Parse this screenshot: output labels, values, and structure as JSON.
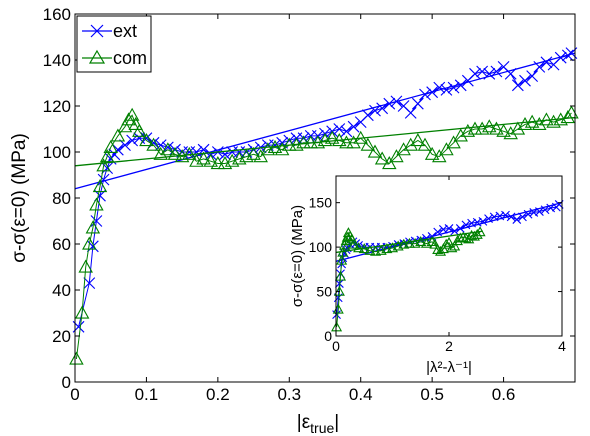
{
  "chart_data": [
    {
      "type": "scatter",
      "xlabel": "|ε",
      "xlabel_sub": "true",
      "xlabel_end": "|",
      "ylabel": "σ-σ(ε=0) (MPa)",
      "xlim": [
        0,
        0.7
      ],
      "ylim": [
        0,
        160
      ],
      "xticks": [
        0,
        0.1,
        0.2,
        0.3,
        0.4,
        0.5,
        0.6
      ],
      "xtick_labels": [
        "0",
        "0.1",
        "0.2",
        "0.3",
        "0.4",
        "0.5",
        "0.6"
      ],
      "yticks": [
        0,
        20,
        40,
        60,
        80,
        100,
        120,
        140,
        160
      ],
      "ytick_labels": [
        "0",
        "20",
        "40",
        "60",
        "80",
        "100",
        "120",
        "140",
        "160"
      ],
      "legend": "top-left",
      "grid": false,
      "series": [
        {
          "name": "ext",
          "color": "#0000ff",
          "marker": "x",
          "points": [
            [
              0.005,
              24
            ],
            [
              0.02,
              43
            ],
            [
              0.025,
              59
            ],
            [
              0.03,
              70
            ],
            [
              0.035,
              81
            ],
            [
              0.04,
              88
            ],
            [
              0.045,
              93
            ],
            [
              0.05,
              97
            ],
            [
              0.055,
              99
            ],
            [
              0.06,
              101
            ],
            [
              0.07,
              103
            ],
            [
              0.08,
              105
            ],
            [
              0.09,
              106
            ],
            [
              0.1,
              106
            ],
            [
              0.11,
              104
            ],
            [
              0.12,
              103
            ],
            [
              0.13,
              102
            ],
            [
              0.14,
              101
            ],
            [
              0.15,
              100
            ],
            [
              0.16,
              100
            ],
            [
              0.17,
              100
            ],
            [
              0.18,
              101
            ],
            [
              0.19,
              99
            ],
            [
              0.2,
              100
            ],
            [
              0.21,
              99
            ],
            [
              0.22,
              100
            ],
            [
              0.23,
              100
            ],
            [
              0.24,
              100
            ],
            [
              0.25,
              101
            ],
            [
              0.26,
              102
            ],
            [
              0.27,
              103
            ],
            [
              0.28,
              103
            ],
            [
              0.29,
              104
            ],
            [
              0.3,
              105
            ],
            [
              0.31,
              106
            ],
            [
              0.32,
              106
            ],
            [
              0.33,
              107
            ],
            [
              0.34,
              107
            ],
            [
              0.35,
              108
            ],
            [
              0.36,
              109
            ],
            [
              0.37,
              110
            ],
            [
              0.38,
              109
            ],
            [
              0.39,
              111
            ],
            [
              0.4,
              113
            ],
            [
              0.41,
              116
            ],
            [
              0.42,
              118
            ],
            [
              0.43,
              119
            ],
            [
              0.44,
              121
            ],
            [
              0.45,
              122
            ],
            [
              0.46,
              120
            ],
            [
              0.47,
              117
            ],
            [
              0.48,
              121
            ],
            [
              0.49,
              125
            ],
            [
              0.5,
              126
            ],
            [
              0.51,
              128
            ],
            [
              0.52,
              127
            ],
            [
              0.53,
              128
            ],
            [
              0.54,
              129
            ],
            [
              0.55,
              131
            ],
            [
              0.56,
              134
            ],
            [
              0.57,
              135
            ],
            [
              0.58,
              134
            ],
            [
              0.59,
              135
            ],
            [
              0.6,
              137
            ],
            [
              0.61,
              134
            ],
            [
              0.62,
              129
            ],
            [
              0.63,
              131
            ],
            [
              0.64,
              133
            ],
            [
              0.65,
              137
            ],
            [
              0.66,
              139
            ],
            [
              0.67,
              138
            ],
            [
              0.68,
              141
            ],
            [
              0.69,
              142
            ],
            [
              0.695,
              143
            ]
          ],
          "fit": [
            [
              0,
              84
            ],
            [
              0.7,
              143
            ]
          ]
        },
        {
          "name": "com",
          "color": "#008000",
          "marker": "triangle",
          "points": [
            [
              0.002,
              10
            ],
            [
              0.01,
              30
            ],
            [
              0.015,
              50
            ],
            [
              0.02,
              60
            ],
            [
              0.025,
              67
            ],
            [
              0.03,
              77
            ],
            [
              0.035,
              85
            ],
            [
              0.04,
              94
            ],
            [
              0.045,
              98
            ],
            [
              0.05,
              102
            ],
            [
              0.06,
              107
            ],
            [
              0.07,
              111
            ],
            [
              0.075,
              114
            ],
            [
              0.08,
              116
            ],
            [
              0.085,
              112
            ],
            [
              0.09,
              109
            ],
            [
              0.1,
              105
            ],
            [
              0.11,
              103
            ],
            [
              0.12,
              99
            ],
            [
              0.13,
              101
            ],
            [
              0.14,
              99
            ],
            [
              0.15,
              98
            ],
            [
              0.16,
              99
            ],
            [
              0.17,
              96
            ],
            [
              0.18,
              97
            ],
            [
              0.19,
              96
            ],
            [
              0.2,
              95
            ],
            [
              0.21,
              95
            ],
            [
              0.22,
              96
            ],
            [
              0.23,
              97
            ],
            [
              0.24,
              98
            ],
            [
              0.25,
              99
            ],
            [
              0.26,
              98
            ],
            [
              0.27,
              101
            ],
            [
              0.28,
              102
            ],
            [
              0.29,
              101
            ],
            [
              0.3,
              103
            ],
            [
              0.31,
              103
            ],
            [
              0.32,
              104
            ],
            [
              0.33,
              104
            ],
            [
              0.34,
              104
            ],
            [
              0.35,
              105
            ],
            [
              0.36,
              106
            ],
            [
              0.37,
              105
            ],
            [
              0.38,
              104
            ],
            [
              0.39,
              104
            ],
            [
              0.4,
              106
            ],
            [
              0.41,
              103
            ],
            [
              0.42,
              100
            ],
            [
              0.43,
              97
            ],
            [
              0.44,
              95
            ],
            [
              0.45,
              98
            ],
            [
              0.46,
              101
            ],
            [
              0.47,
              103
            ],
            [
              0.48,
              105
            ],
            [
              0.49,
              103
            ],
            [
              0.5,
              99
            ],
            [
              0.51,
              98
            ],
            [
              0.52,
              101
            ],
            [
              0.53,
              104
            ],
            [
              0.54,
              107
            ],
            [
              0.55,
              109
            ],
            [
              0.56,
              110
            ],
            [
              0.57,
              110
            ],
            [
              0.58,
              111
            ],
            [
              0.59,
              110
            ],
            [
              0.6,
              109
            ],
            [
              0.61,
              108
            ],
            [
              0.62,
              110
            ],
            [
              0.63,
              112
            ],
            [
              0.64,
              113
            ],
            [
              0.65,
              112
            ],
            [
              0.66,
              114
            ],
            [
              0.67,
              113
            ],
            [
              0.68,
              114
            ],
            [
              0.69,
              115
            ],
            [
              0.695,
              117
            ]
          ],
          "fit": [
            [
              0,
              94
            ],
            [
              0.7,
              115
            ]
          ]
        }
      ]
    },
    {
      "type": "scatter",
      "xlabel": "|λ²-λ⁻¹|",
      "ylabel": "σ-σ(ε=0) (MPa)",
      "xlim": [
        0,
        4
      ],
      "ylim": [
        0,
        180
      ],
      "xticks": [
        0,
        2,
        4
      ],
      "xtick_labels": [
        "0",
        "2",
        "4"
      ],
      "yticks": [
        0,
        50,
        100,
        150
      ],
      "ytick_labels": [
        "0",
        "50",
        "100",
        "150"
      ],
      "grid": false,
      "series": [
        {
          "color": "#0000ff",
          "marker": "x",
          "points": [
            [
              0.01,
              24
            ],
            [
              0.04,
              43
            ],
            [
              0.06,
              59
            ],
            [
              0.08,
              70
            ],
            [
              0.1,
              81
            ],
            [
              0.12,
              88
            ],
            [
              0.15,
              93
            ],
            [
              0.18,
              97
            ],
            [
              0.2,
              99
            ],
            [
              0.25,
              103
            ],
            [
              0.3,
              106
            ],
            [
              0.35,
              104
            ],
            [
              0.4,
              102
            ],
            [
              0.5,
              100
            ],
            [
              0.6,
              100
            ],
            [
              0.7,
              100
            ],
            [
              0.8,
              100
            ],
            [
              0.9,
              100
            ],
            [
              1.0,
              101
            ],
            [
              1.1,
              103
            ],
            [
              1.2,
              104
            ],
            [
              1.3,
              106
            ],
            [
              1.4,
              107
            ],
            [
              1.5,
              108
            ],
            [
              1.6,
              110
            ],
            [
              1.7,
              112
            ],
            [
              1.8,
              117
            ],
            [
              1.9,
              120
            ],
            [
              2.0,
              121
            ],
            [
              2.1,
              118
            ],
            [
              2.2,
              121
            ],
            [
              2.3,
              125
            ],
            [
              2.4,
              127
            ],
            [
              2.5,
              128
            ],
            [
              2.6,
              129
            ],
            [
              2.7,
              132
            ],
            [
              2.8,
              134
            ],
            [
              2.9,
              135
            ],
            [
              3.0,
              136
            ],
            [
              3.1,
              134
            ],
            [
              3.2,
              131
            ],
            [
              3.3,
              134
            ],
            [
              3.4,
              137
            ],
            [
              3.5,
              139
            ],
            [
              3.6,
              140
            ],
            [
              3.7,
              142
            ],
            [
              3.8,
              144
            ],
            [
              3.9,
              145
            ],
            [
              3.95,
              148
            ]
          ],
          "fit": [
            [
              0,
              84
            ],
            [
              4,
              150
            ]
          ]
        },
        {
          "color": "#008000",
          "marker": "triangle",
          "points": [
            [
              0.01,
              10
            ],
            [
              0.04,
              30
            ],
            [
              0.06,
              50
            ],
            [
              0.08,
              67
            ],
            [
              0.1,
              85
            ],
            [
              0.12,
              94
            ],
            [
              0.15,
              102
            ],
            [
              0.18,
              107
            ],
            [
              0.2,
              111
            ],
            [
              0.22,
              116
            ],
            [
              0.25,
              112
            ],
            [
              0.28,
              109
            ],
            [
              0.32,
              103
            ],
            [
              0.4,
              99
            ],
            [
              0.5,
              98
            ],
            [
              0.6,
              96
            ],
            [
              0.7,
              95
            ],
            [
              0.8,
              96
            ],
            [
              0.9,
              98
            ],
            [
              1.0,
              99
            ],
            [
              1.1,
              101
            ],
            [
              1.2,
              103
            ],
            [
              1.3,
              104
            ],
            [
              1.4,
              104
            ],
            [
              1.5,
              106
            ],
            [
              1.6,
              104
            ],
            [
              1.7,
              106
            ],
            [
              1.75,
              103
            ],
            [
              1.8,
              97
            ],
            [
              1.85,
              95
            ],
            [
              1.9,
              98
            ],
            [
              1.95,
              103
            ],
            [
              2.0,
              105
            ],
            [
              2.05,
              99
            ],
            [
              2.1,
              101
            ],
            [
              2.15,
              107
            ],
            [
              2.2,
              110
            ],
            [
              2.25,
              111
            ],
            [
              2.3,
              110
            ],
            [
              2.35,
              109
            ],
            [
              2.4,
              113
            ],
            [
              2.45,
              112
            ],
            [
              2.5,
              114
            ],
            [
              2.55,
              117
            ]
          ],
          "fit": [
            [
              0,
              94
            ],
            [
              2.6,
              118
            ]
          ]
        }
      ]
    }
  ]
}
